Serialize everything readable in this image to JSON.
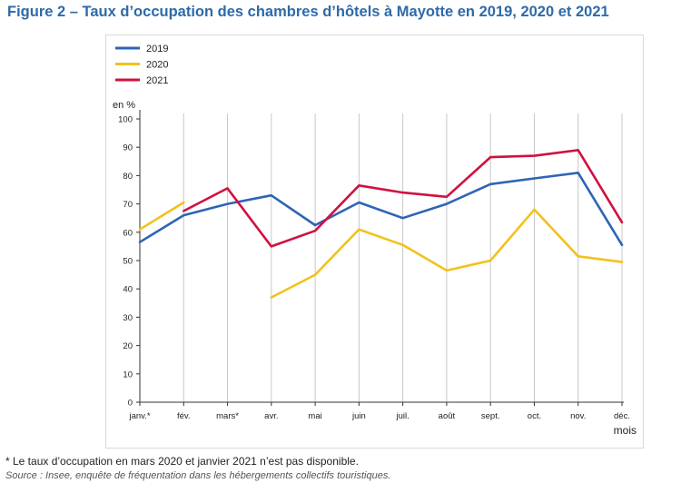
{
  "title": "Figure 2 – Taux d’occupation des chambres d’hôtels à Mayotte en 2019, 2020 et 2021",
  "chart_data": {
    "type": "line",
    "ylabel": "en %",
    "xlabel": "mois",
    "ylim": [
      0,
      100
    ],
    "yticks": [
      0,
      10,
      20,
      30,
      40,
      50,
      60,
      70,
      80,
      90,
      100
    ],
    "grid": "vertical",
    "legend_position": "top-left",
    "categories": [
      "janv.*",
      "fév.",
      "mars*",
      "avr.",
      "mai",
      "juin",
      "juil.",
      "août",
      "sept.",
      "oct.",
      "nov.",
      "déc."
    ],
    "series": [
      {
        "name": "2019",
        "color": "#2e64b4",
        "values": [
          56.5,
          66,
          70,
          73,
          62.5,
          70.5,
          65,
          70,
          77,
          79,
          81,
          55.5
        ]
      },
      {
        "name": "2020",
        "color": "#f2c21b",
        "values": [
          61,
          70.5,
          null,
          37,
          45,
          61,
          55.5,
          46.5,
          50,
          68,
          51.5,
          49.5
        ]
      },
      {
        "name": "2021",
        "color": "#d0113f",
        "values": [
          null,
          67.5,
          75.5,
          55,
          60.5,
          76.5,
          74,
          72.5,
          86.5,
          87,
          89,
          63.5
        ]
      }
    ]
  },
  "notes": {
    "footnote": "* Le taux d’occupation en mars 2020 et janvier 2021 n’est pas disponible.",
    "source_label": "Source :",
    "source_text": " Insee, enquête de fréquentation dans les hébergements collectifs touristiques."
  }
}
